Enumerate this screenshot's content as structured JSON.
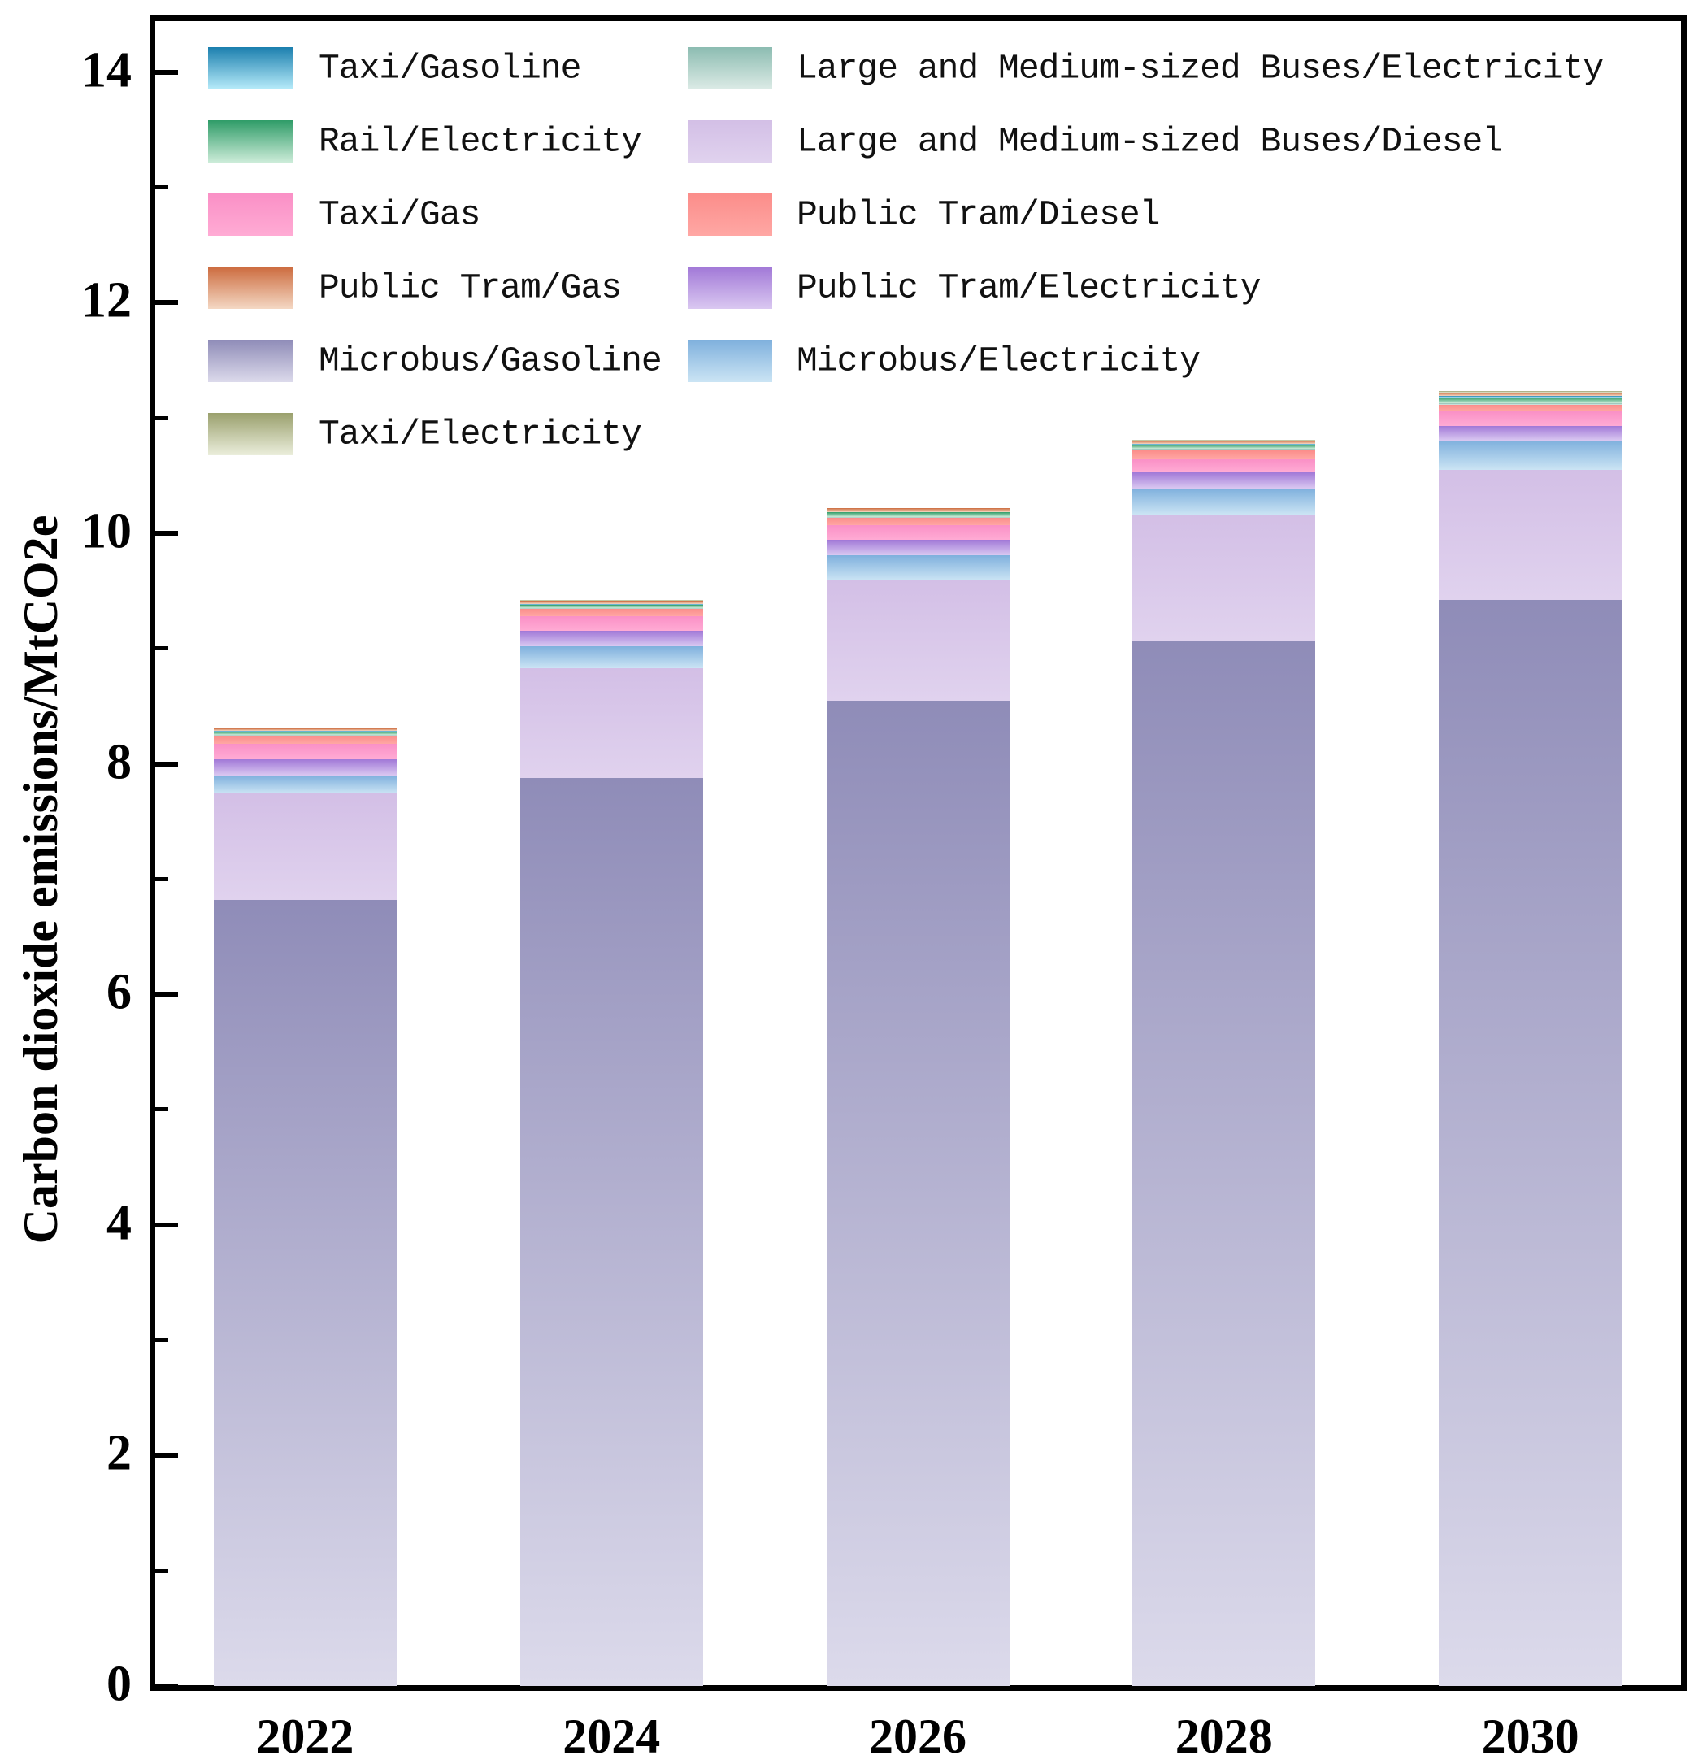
{
  "figure": {
    "background_color": "#ffffff",
    "axis_color": "#000000"
  },
  "y_axis": {
    "title": "Carbon dioxide emissions/MtCO2e",
    "major_tick_labels": [
      "0",
      "2",
      "4",
      "6",
      "8",
      "10",
      "12",
      "14"
    ],
    "major_tick_values": [
      0,
      2,
      4,
      6,
      8,
      10,
      12,
      14
    ],
    "minor_tick_values": [
      1,
      3,
      5,
      7,
      9,
      11,
      13
    ]
  },
  "x_axis": {
    "tick_labels": [
      "2022",
      "2024",
      "2026",
      "2028",
      "2030"
    ]
  },
  "legend": {
    "columns": [
      [
        "Taxi/Gasoline",
        "Rail/Electricity",
        "Taxi/Gas",
        "Public Tram/Gas",
        "Microbus/Gasoline",
        "Taxi/Electricity"
      ],
      [
        "Large and Medium-sized Buses/Electricity",
        "Large and Medium-sized Buses/Diesel",
        "Public Tram/Diesel",
        "Public Tram/Electricity",
        "Microbus/Electricity"
      ]
    ]
  },
  "chart_data": {
    "type": "bar",
    "stacked": true,
    "title": "",
    "xlabel": "",
    "ylabel": "Carbon dioxide emissions/MtCO2e",
    "ylim": [
      0,
      14.47
    ],
    "grid": false,
    "legend_position": "upper-left",
    "categories": [
      "2022",
      "2024",
      "2026",
      "2028",
      "2030"
    ],
    "series": [
      {
        "name": "Microbus/Gasoline",
        "values": [
          6.82,
          7.88,
          8.55,
          9.07,
          9.42
        ],
        "color_top": "#8f8cb8",
        "color_bottom": "#dcdaeb"
      },
      {
        "name": "Large and Medium-sized Buses/Diesel",
        "values": [
          0.92,
          0.95,
          1.04,
          1.09,
          1.13
        ],
        "color_top": "#d3bfe6",
        "color_bottom": "#e0d2ee"
      },
      {
        "name": "Microbus/Electricity",
        "values": [
          0.16,
          0.19,
          0.22,
          0.23,
          0.25
        ],
        "color_top": "#7fb0dd",
        "color_bottom": "#cbe4f4"
      },
      {
        "name": "Public Tram/Electricity",
        "values": [
          0.14,
          0.13,
          0.13,
          0.14,
          0.13
        ],
        "color_top": "#a178d7",
        "color_bottom": "#dac8f1"
      },
      {
        "name": "Taxi/Gas",
        "values": [
          0.13,
          0.13,
          0.13,
          0.11,
          0.13
        ],
        "color_top": "#fa90c6",
        "color_bottom": "#ffabd4"
      },
      {
        "name": "Public Tram/Diesel",
        "values": [
          0.07,
          0.06,
          0.06,
          0.08,
          0.05
        ],
        "color_top": "#fb8d8a",
        "color_bottom": "#ffa7a4"
      },
      {
        "name": "Large and Medium-sized Buses/Electricity",
        "values": [
          0.01,
          0.01,
          0.01,
          0.01,
          0.02
        ],
        "color_top": "#8cbcb1",
        "color_bottom": "#dcebe6"
      },
      {
        "name": "Rail/Electricity",
        "values": [
          0.03,
          0.03,
          0.04,
          0.04,
          0.05
        ],
        "color_top": "#2f9c68",
        "color_bottom": "#cdecd9"
      },
      {
        "name": "Taxi/Gasoline",
        "values": [
          0.005,
          0.005,
          0.005,
          0.005,
          0.01
        ],
        "color_top": "#1b7fae",
        "color_bottom": "#b8ecfa"
      },
      {
        "name": "Public Tram/Gas",
        "values": [
          0.02,
          0.03,
          0.03,
          0.03,
          0.03
        ],
        "color_top": "#cc6b3e",
        "color_bottom": "#f4d8c4"
      },
      {
        "name": "Taxi/Electricity",
        "values": [
          0.005,
          0.005,
          0.005,
          0.005,
          0.01
        ],
        "color_top": "#9aa06d",
        "color_bottom": "#ebeedc"
      }
    ],
    "totals": [
      8.31,
      9.42,
      10.22,
      10.81,
      11.23
    ]
  }
}
